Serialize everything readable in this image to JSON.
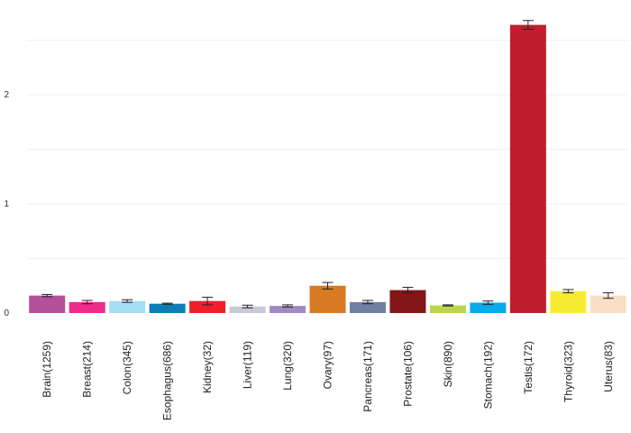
{
  "chart_data": {
    "type": "bar",
    "title": "",
    "xlabel": "",
    "ylabel": "",
    "ylim": [
      0,
      2.7
    ],
    "grid": true,
    "y_ticks": [
      {
        "value": 0,
        "label": "0"
      },
      {
        "value": 1,
        "label": "1"
      },
      {
        "value": 2,
        "label": "2"
      }
    ],
    "categories": [
      "Brain(1259)",
      "Breast(214)",
      "Colon(345)",
      "Esophagus(686)",
      "Kidney(32)",
      "Liver(119)",
      "Lung(320)",
      "Ovary(97)",
      "Pancreas(171)",
      "Prostate(106)",
      "Skin(890)",
      "Stomach(192)",
      "Testis(172)",
      "Thyroid(323)",
      "Uterus(83)"
    ],
    "values": [
      0.16,
      0.1,
      0.11,
      0.085,
      0.11,
      0.06,
      0.065,
      0.25,
      0.1,
      0.21,
      0.07,
      0.095,
      2.64,
      0.2,
      0.16
    ],
    "errors": [
      0.01,
      0.015,
      0.012,
      0.005,
      0.035,
      0.012,
      0.01,
      0.03,
      0.015,
      0.025,
      0.005,
      0.015,
      0.04,
      0.015,
      0.025
    ],
    "colors": [
      "#b5509a",
      "#ef2b8b",
      "#a7dcf5",
      "#0c7fb5",
      "#ee1f2b",
      "#c4cbd6",
      "#a08ac2",
      "#d97b23",
      "#6f7fa2",
      "#821618",
      "#b9d64a",
      "#0aaaeb",
      "#be1e2d",
      "#f7ec33",
      "#f9dfc5"
    ]
  }
}
